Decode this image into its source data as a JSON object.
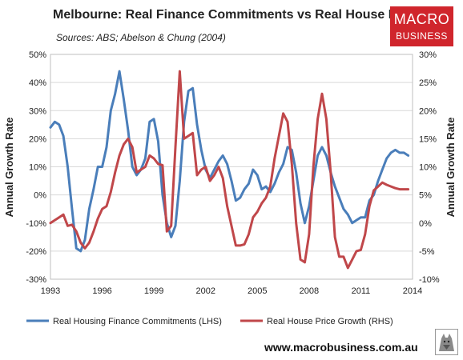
{
  "header": {
    "title": "Melbourne: Real Finance Commitments vs Real House Prices",
    "subtitle": "Sources: ABS; Abelson & Chung (2004)"
  },
  "logo": {
    "line1": "MACRO",
    "line2": "BUSINESS"
  },
  "footer": {
    "url": "www.macrobusiness.com.au"
  },
  "colors": {
    "blue": "#4a7eba",
    "red": "#c0474a",
    "grid": "#d9d9d9",
    "logo_bg": "#d0252c"
  },
  "chart_data": {
    "type": "line",
    "title": "Melbourne: Real Finance Commitments vs Real House Prices",
    "left_axis": {
      "label": "Annual Growth Rate",
      "range": [
        -30,
        50
      ],
      "ticks": [
        "-30%",
        "-20%",
        "-10%",
        "0%",
        "10%",
        "20%",
        "30%",
        "40%",
        "50%"
      ]
    },
    "right_axis": {
      "label": "Annual Growth Rate",
      "range": [
        -10,
        30
      ],
      "ticks": [
        "-10%",
        "-5%",
        "0%",
        "5%",
        "10%",
        "15%",
        "20%",
        "25%",
        "30%"
      ]
    },
    "x_axis": {
      "range": [
        1993,
        2014
      ],
      "ticks": [
        "1993",
        "1996",
        "1999",
        "2002",
        "2005",
        "2008",
        "2011",
        "2014"
      ]
    },
    "grid": "horizontal",
    "legend_position": "bottom",
    "series": [
      {
        "name": "Real Housing Finance Commitments (LHS)",
        "axis": "left",
        "color": "#4a7eba",
        "x": [
          1993.0,
          1993.25,
          1993.5,
          1993.75,
          1994.0,
          1994.25,
          1994.5,
          1994.75,
          1995.0,
          1995.25,
          1995.5,
          1995.75,
          1996.0,
          1996.25,
          1996.5,
          1996.75,
          1997.0,
          1997.25,
          1997.5,
          1997.75,
          1998.0,
          1998.25,
          1998.5,
          1998.75,
          1999.0,
          1999.25,
          1999.5,
          1999.75,
          2000.0,
          2000.25,
          2000.5,
          2000.75,
          2001.0,
          2001.25,
          2001.5,
          2001.75,
          2002.0,
          2002.25,
          2002.5,
          2002.75,
          2003.0,
          2003.25,
          2003.5,
          2003.75,
          2004.0,
          2004.25,
          2004.5,
          2004.75,
          2005.0,
          2005.25,
          2005.5,
          2005.75,
          2006.0,
          2006.25,
          2006.5,
          2006.75,
          2007.0,
          2007.25,
          2007.5,
          2007.75,
          2008.0,
          2008.25,
          2008.5,
          2008.75,
          2009.0,
          2009.25,
          2009.5,
          2009.75,
          2010.0,
          2010.25,
          2010.5,
          2010.75,
          2011.0,
          2011.25,
          2011.5,
          2011.75,
          2012.0,
          2012.25,
          2012.5,
          2012.75,
          2013.0,
          2013.25,
          2013.5,
          2013.75
        ],
        "values": [
          24,
          26,
          25,
          21,
          10,
          -5,
          -19,
          -20,
          -16,
          -5,
          2,
          10,
          10,
          17,
          30,
          36,
          44,
          34,
          23,
          10,
          7,
          9,
          13,
          26,
          27,
          19,
          0,
          -10,
          -15,
          -11,
          5,
          26,
          37,
          38,
          25,
          16,
          9,
          6,
          9,
          12,
          14,
          11,
          5,
          -2,
          -1,
          2,
          4,
          9,
          7,
          2,
          3,
          1,
          4,
          8,
          11,
          17,
          16,
          8,
          -3,
          -10,
          -4,
          5,
          14,
          17,
          14,
          8,
          3,
          -1,
          -5,
          -7,
          -10,
          -9,
          -8,
          -8,
          -2,
          0,
          5,
          9,
          13,
          15,
          16,
          15,
          15,
          14
        ]
      },
      {
        "name": "Real House Price Growth (RHS)",
        "axis": "right",
        "color": "#c0474a",
        "x": [
          1993.0,
          1993.25,
          1993.5,
          1993.75,
          1994.0,
          1994.25,
          1994.5,
          1994.75,
          1995.0,
          1995.25,
          1995.5,
          1995.75,
          1996.0,
          1996.25,
          1996.5,
          1996.75,
          1997.0,
          1997.25,
          1997.5,
          1997.75,
          1998.0,
          1998.25,
          1998.5,
          1998.75,
          1999.0,
          1999.25,
          1999.5,
          1999.75,
          2000.0,
          2000.25,
          2000.5,
          2000.75,
          2001.0,
          2001.25,
          2001.5,
          2001.75,
          2002.0,
          2002.25,
          2002.5,
          2002.75,
          2003.0,
          2003.25,
          2003.5,
          2003.75,
          2004.0,
          2004.25,
          2004.5,
          2004.75,
          2005.0,
          2005.25,
          2005.5,
          2005.75,
          2006.0,
          2006.25,
          2006.5,
          2006.75,
          2007.0,
          2007.25,
          2007.5,
          2007.75,
          2008.0,
          2008.25,
          2008.5,
          2008.75,
          2009.0,
          2009.25,
          2009.5,
          2009.75,
          2010.0,
          2010.25,
          2010.5,
          2010.75,
          2011.0,
          2011.25,
          2011.5,
          2011.75,
          2012.0,
          2012.25,
          2012.5,
          2012.75,
          2013.0,
          2013.25,
          2013.5,
          2013.75
        ],
        "values": [
          0,
          0.5,
          1,
          1.5,
          -0.5,
          -0.3,
          -1.5,
          -3.5,
          -4.5,
          -3.5,
          -1.5,
          0.8,
          2.5,
          3,
          5.5,
          9,
          12,
          14,
          15,
          13.5,
          9,
          9.5,
          10,
          12,
          11.5,
          10.5,
          10.3,
          -1.5,
          -0.5,
          13.5,
          27,
          15,
          15.5,
          16,
          8.5,
          9.5,
          10,
          7.5,
          8.5,
          10,
          8,
          3,
          -0.5,
          -4,
          -4,
          -3.8,
          -2,
          1,
          2,
          3.5,
          4.5,
          6.5,
          11.5,
          15.5,
          19.5,
          18,
          10.5,
          0,
          -6.5,
          -7,
          -2,
          10,
          18.5,
          23,
          18.5,
          9,
          -2.5,
          -6,
          -6,
          -8,
          -6.5,
          -5,
          -4.8,
          -2,
          3,
          5.8,
          6.5,
          7.2,
          6.8,
          6.5,
          6.2,
          6,
          6,
          6
        ]
      }
    ]
  }
}
